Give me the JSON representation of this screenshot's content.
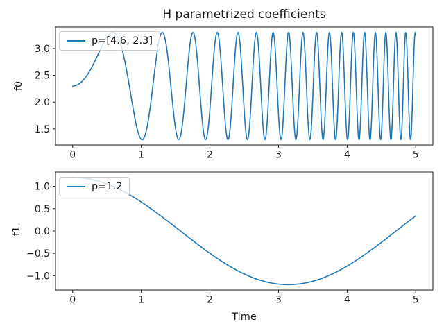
{
  "figure": {
    "background": "#ffffff",
    "accent_color": "#1f77b4",
    "text_color": "#1a1a1a"
  },
  "chart_data": [
    {
      "type": "line",
      "subplot": "top",
      "title": "H parametrized coefficients",
      "xlabel": "",
      "ylabel": "f0",
      "xlim": [
        -0.25,
        5.25
      ],
      "ylim": [
        1.2,
        3.4
      ],
      "x_ticks": [
        0,
        1,
        2,
        3,
        4,
        5
      ],
      "x_tick_labels": [
        "0",
        "1",
        "2",
        "3",
        "4",
        "5"
      ],
      "y_ticks": [
        1.5,
        2.0,
        2.5,
        3.0
      ],
      "y_tick_labels": [
        "1.5",
        "2.0",
        "2.5",
        "3.0"
      ],
      "grid": false,
      "legend_location": "upper left",
      "legend": [
        "p=[4.6, 2.3]"
      ],
      "series": [
        {
          "name": "p=[4.6, 2.3]",
          "params": [
            4.6,
            2.3
          ],
          "color": "#1f77b4",
          "formula": "f0(t) = 2.3 + sin(4.6 * t^2)",
          "generator": {
            "kind": "sin_of_t_squared",
            "rate": 4.6,
            "offset": 2.3,
            "amplitude": 1.0
          },
          "t_range": [
            0,
            5
          ],
          "key_points": [
            [
              0,
              2.3
            ],
            [
              0.584,
              3.3
            ],
            [
              1.012,
              1.3
            ],
            [
              1.307,
              3.3
            ],
            [
              1.546,
              1.3
            ],
            [
              3.742,
              3.3
            ],
            [
              4.993,
              3.3
            ],
            [
              5,
              3.25
            ]
          ]
        }
      ]
    },
    {
      "type": "line",
      "subplot": "bottom",
      "title": "",
      "xlabel": "Time",
      "ylabel": "f1",
      "xlim": [
        -0.25,
        5.25
      ],
      "ylim": [
        -1.32,
        1.32
      ],
      "x_ticks": [
        0,
        1,
        2,
        3,
        4,
        5
      ],
      "x_tick_labels": [
        "0",
        "1",
        "2",
        "3",
        "4",
        "5"
      ],
      "y_ticks": [
        -1.0,
        -0.5,
        0.0,
        0.5,
        1.0
      ],
      "y_tick_labels": [
        "−1.0",
        "−0.5",
        "0.0",
        "0.5",
        "1.0"
      ],
      "grid": false,
      "legend_location": "upper left",
      "legend": [
        "p=1.2"
      ],
      "series": [
        {
          "name": "p=1.2",
          "params": [
            1.2
          ],
          "color": "#1f77b4",
          "formula": "f1(t) = 1.2 * cos(t)",
          "generator": {
            "kind": "cosine",
            "rate": 1.0,
            "offset": 0.0,
            "amplitude": 1.2
          },
          "t_range": [
            0,
            5
          ],
          "key_points": [
            [
              0,
              1.2
            ],
            [
              1.571,
              0.0
            ],
            [
              3.142,
              -1.2
            ],
            [
              5,
              0.34
            ]
          ]
        }
      ]
    }
  ]
}
